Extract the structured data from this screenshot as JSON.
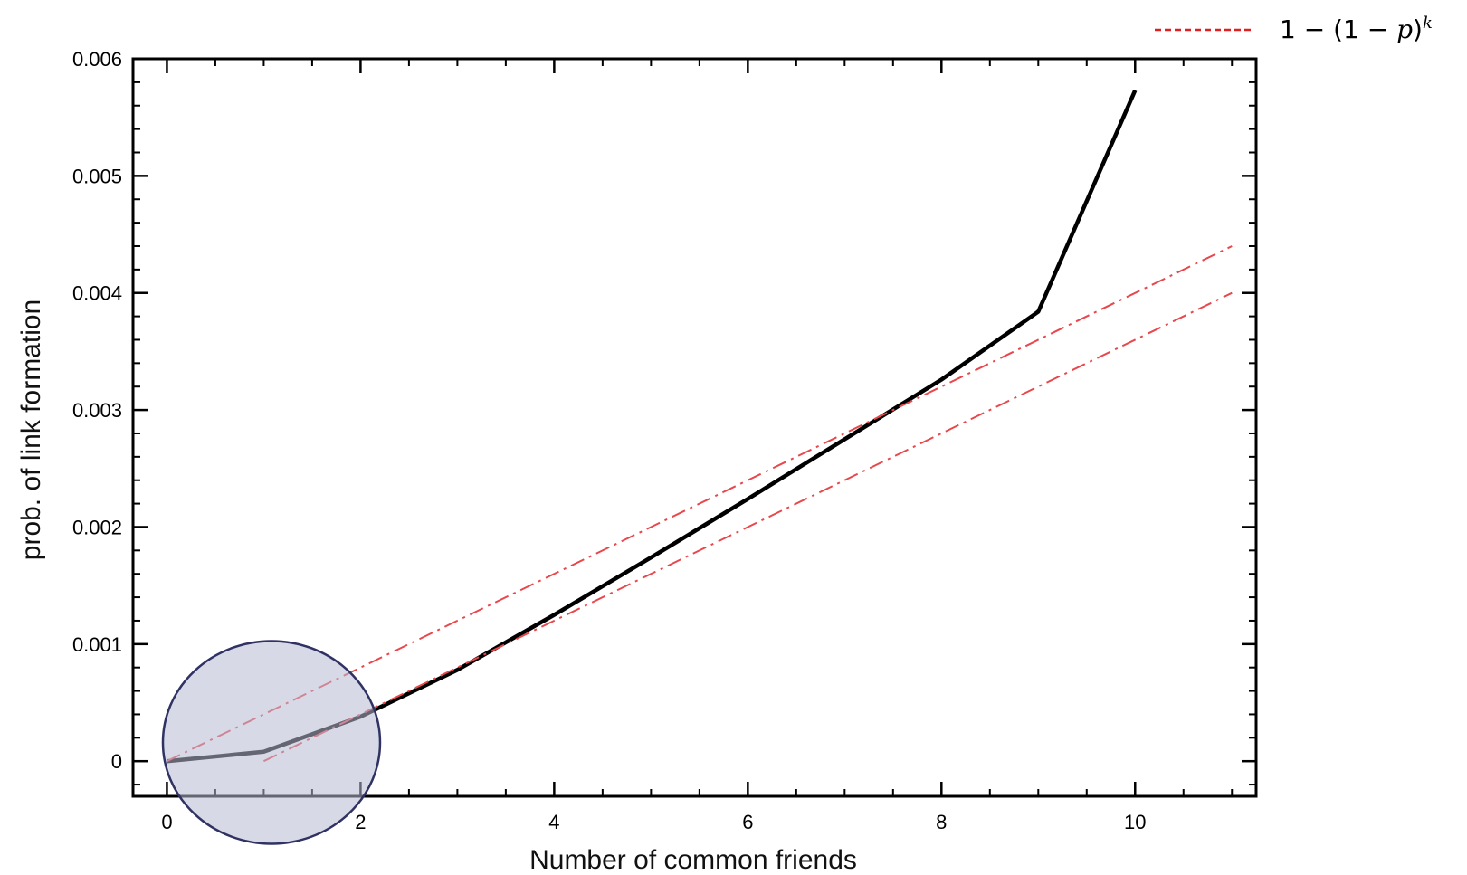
{
  "chart_data": {
    "type": "line",
    "title": "",
    "xlabel": "Number of common friends",
    "ylabel": "prob. of link formation",
    "xlim": [
      -0.35,
      11.25
    ],
    "ylim": [
      -0.0003,
      0.006
    ],
    "x_ticks": [
      "0",
      "2",
      "4",
      "6",
      "8",
      "10"
    ],
    "y_ticks": [
      "0",
      "0.001",
      "0.002",
      "0.003",
      "0.004",
      "0.005",
      "0.006"
    ],
    "grid": false,
    "legend": {
      "placement": "top-right",
      "prefix": "1 −  (1 − ",
      "var": "p",
      "suffix": ")",
      "exponent": "k"
    },
    "series": [
      {
        "name": "",
        "style": "solid",
        "color": "#000000",
        "x": [
          0,
          1,
          2,
          3,
          4,
          5,
          6,
          7,
          8,
          9,
          10
        ],
        "y": [
          0.0,
          8e-05,
          0.00038,
          0.00078,
          0.00125,
          0.00174,
          0.00224,
          0.00275,
          0.00326,
          0.00384,
          0.00573
        ]
      },
      {
        "name": "",
        "style": "dashdot",
        "color": "#e8474c",
        "x": [
          0,
          11
        ],
        "y": [
          0.0,
          0.0044
        ]
      },
      {
        "name": "",
        "style": "dashdot",
        "color": "#e8474c",
        "x": [
          1,
          11
        ],
        "y": [
          0.0,
          0.004
        ]
      }
    ],
    "annotation": {
      "shape": "ellipse",
      "center": [
        1.08,
        0.00016
      ],
      "fill": "#b8b9d2",
      "stroke": "#2f3263"
    }
  }
}
